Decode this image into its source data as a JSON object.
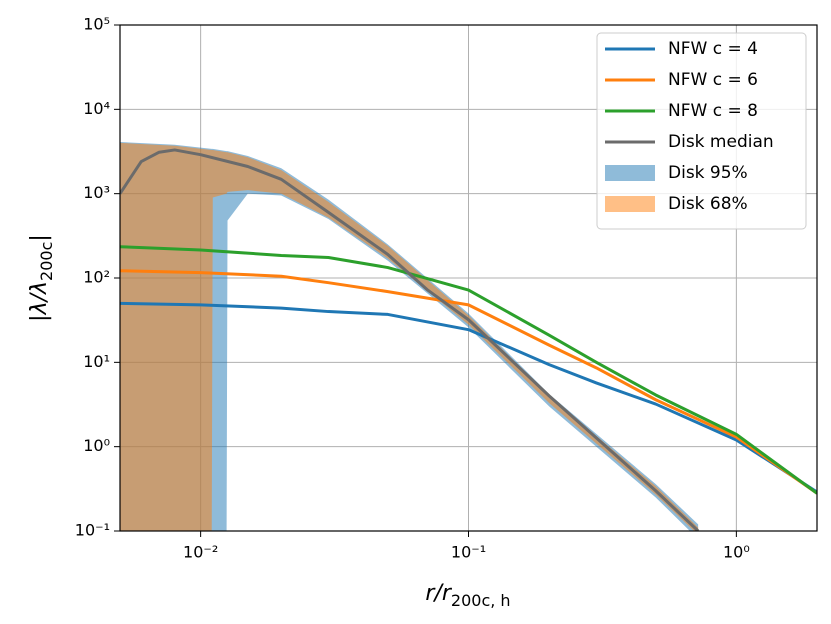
{
  "chart_data": {
    "type": "line",
    "log_x": true,
    "log_y": true,
    "grid": true,
    "legend": "upper right",
    "xlim": [
      0.005,
      2
    ],
    "ylim": [
      0.1,
      100000
    ],
    "xticks": [
      {
        "value": 0.01,
        "label": "10⁻²"
      },
      {
        "value": 0.1,
        "label": "10⁻¹"
      },
      {
        "value": 1,
        "label": "10⁰"
      }
    ],
    "yticks": [
      {
        "value": 0.1,
        "label": "10⁻¹"
      },
      {
        "value": 1,
        "label": "10⁰"
      },
      {
        "value": 10,
        "label": "10¹"
      },
      {
        "value": 100,
        "label": "10²"
      },
      {
        "value": 1000,
        "label": "10³"
      },
      {
        "value": 10000,
        "label": "10⁴"
      },
      {
        "value": 100000,
        "label": "10⁵"
      }
    ],
    "xlabel": {
      "text": "r/r",
      "sub": "200c, h"
    },
    "ylabel": {
      "text": "|λ/λ",
      "sub": "200c",
      "end": "|"
    },
    "series": [
      {
        "name": "NFW c = 4",
        "color": "#1f77b4",
        "x": [
          0.005,
          0.01,
          0.02,
          0.03,
          0.05,
          0.1,
          0.2,
          0.3,
          0.5,
          1,
          2
        ],
        "values": [
          50,
          48,
          44,
          40,
          37,
          24.4,
          9.4,
          5.7,
          3.2,
          1.2,
          0.29
        ]
      },
      {
        "name": "NFW c = 6",
        "color": "#ff7f0e",
        "x": [
          0.005,
          0.01,
          0.02,
          0.03,
          0.05,
          0.1,
          0.2,
          0.3,
          0.5,
          1,
          2
        ],
        "values": [
          122,
          116,
          105,
          88,
          69,
          48,
          16,
          8.6,
          3.6,
          1.3,
          0.28
        ]
      },
      {
        "name": "NFW c = 8",
        "color": "#2ca02c",
        "x": [
          0.005,
          0.01,
          0.02,
          0.03,
          0.05,
          0.1,
          0.2,
          0.3,
          0.5,
          1,
          2
        ],
        "values": [
          235,
          215,
          185,
          175,
          133,
          72,
          21,
          10,
          4.1,
          1.4,
          0.28
        ]
      },
      {
        "name": "Disk median",
        "color": "#6b6b6b",
        "x": [
          0.005,
          0.006,
          0.007,
          0.008,
          0.01,
          0.015,
          0.02,
          0.03,
          0.05,
          0.07,
          0.1,
          0.2,
          0.5,
          0.72
        ],
        "values": [
          1000,
          2400,
          3100,
          3300,
          2900,
          2100,
          1480,
          600,
          190,
          73,
          32,
          4,
          0.3,
          0.1
        ]
      }
    ],
    "bands": [
      {
        "name": "Disk 95%",
        "color": "#1f77b4",
        "x": [
          0.005,
          0.008,
          0.011,
          0.0111,
          0.0125,
          0.0126,
          0.015,
          0.02,
          0.03,
          0.05,
          0.1,
          0.2,
          0.5,
          0.72
        ],
        "lower": [
          0.1,
          0.1,
          0.1,
          0.1,
          0.1,
          480,
          1000,
          950,
          500,
          160,
          26,
          3.0,
          0.25,
          0.08
        ],
        "upper": [
          4100,
          3800,
          3400,
          3400,
          3200,
          3200,
          2800,
          2000,
          850,
          250,
          38,
          4.2,
          0.36,
          0.12
        ]
      },
      {
        "name": "Disk 68%",
        "color": "#ff7f0e",
        "x": [
          0.005,
          0.008,
          0.011,
          0.0111,
          0.0125,
          0.0126,
          0.015,
          0.02,
          0.03,
          0.05,
          0.1,
          0.2,
          0.5,
          0.72
        ],
        "lower": [
          0.1,
          0.1,
          0.1,
          900,
          1000,
          1050,
          1100,
          1000,
          520,
          170,
          28,
          3.3,
          0.27,
          0.09
        ],
        "upper": [
          4000,
          3700,
          3300,
          3300,
          3100,
          3100,
          2700,
          1900,
          800,
          240,
          36,
          4.0,
          0.34,
          0.11
        ]
      }
    ]
  }
}
